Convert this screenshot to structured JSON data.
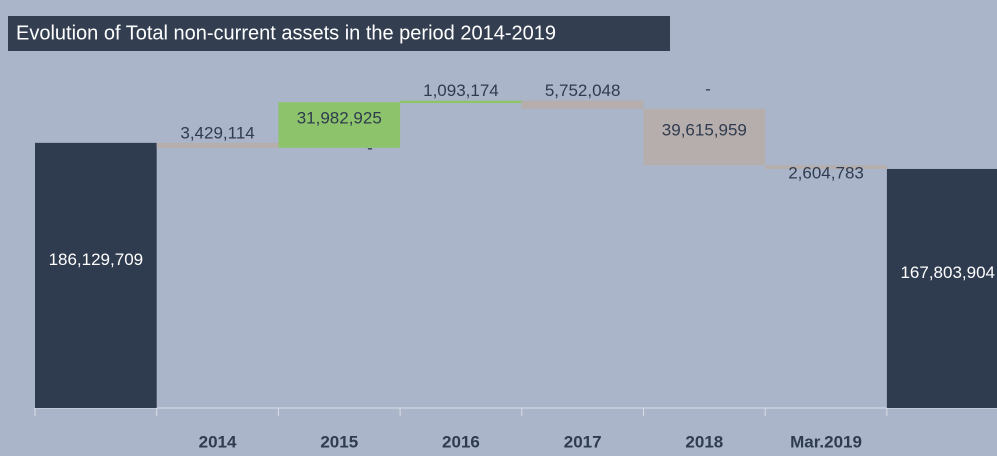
{
  "chart_data": {
    "type": "waterfall",
    "title": "Evolution of Total non-current assets in the period 2014-2019",
    "categories": [
      null,
      "2014",
      "2015",
      "2016",
      "2017",
      "2018",
      "Mar.2019",
      null
    ],
    "values": [
      186129709,
      -3429114,
      31982925,
      1093174,
      -5752048,
      -39615959,
      -2604783,
      167803904
    ],
    "value_labels": [
      "186,129,709",
      "3,429,114",
      "31,982,925",
      "1,093,174",
      "5,752,048",
      "39,615,959",
      "2,604,783",
      "167,803,904"
    ],
    "annotations": [
      "-",
      "-"
    ],
    "ylim": [
      0,
      245000000
    ],
    "colors": {
      "total": "#2f3b4e",
      "increase": "#8dc46b",
      "decrease": "#b6aeac"
    }
  }
}
